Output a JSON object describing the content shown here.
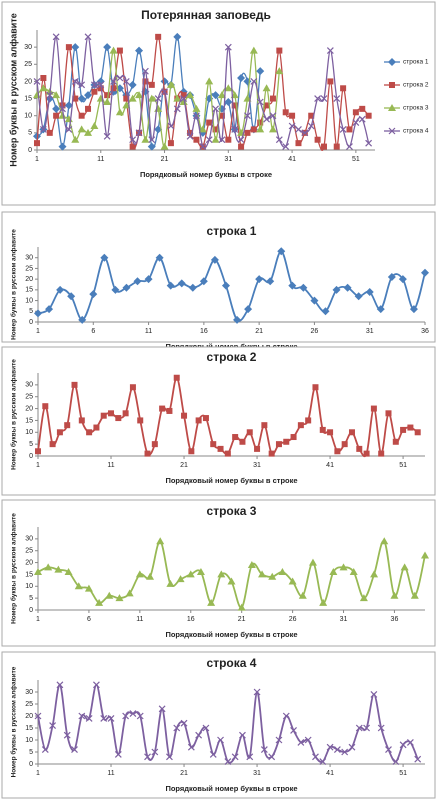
{
  "chart_data": [
    {
      "type": "line",
      "title": "Потерянная заповедь",
      "x_label": "Порядковый номер буквы в строке",
      "y_label": "Номер буквы в русском алфавите",
      "legend": "right",
      "grid": false,
      "xlim": [
        1,
        54
      ],
      "ylim": [
        0,
        35
      ],
      "xticks": [
        1,
        11,
        21,
        31,
        41,
        51
      ],
      "yticks": [
        0,
        5,
        10,
        15,
        20,
        25,
        30
      ],
      "series": [
        {
          "name": "строка 1",
          "color": "#4a7ebb",
          "marker": "diamond",
          "x": [
            1,
            2,
            3,
            4,
            5,
            6,
            7,
            8,
            9,
            10,
            11,
            12,
            13,
            14,
            15,
            16,
            17,
            18,
            19,
            20,
            21,
            22,
            23,
            24,
            25,
            26,
            27,
            28,
            29,
            30,
            31,
            32,
            33,
            34,
            35,
            36
          ],
          "values": [
            4,
            6,
            15,
            12,
            1,
            13,
            30,
            15,
            16,
            19,
            20,
            30,
            17,
            18,
            16,
            19,
            29,
            17,
            1,
            6,
            20,
            19,
            33,
            17,
            16,
            10,
            5,
            15,
            16,
            12,
            14,
            6,
            21,
            20,
            6,
            23
          ]
        },
        {
          "name": "строка 2",
          "color": "#be4b48",
          "marker": "square",
          "x": [
            1,
            2,
            3,
            4,
            5,
            6,
            7,
            8,
            9,
            10,
            11,
            12,
            13,
            14,
            15,
            16,
            17,
            18,
            19,
            20,
            21,
            22,
            23,
            24,
            25,
            26,
            27,
            28,
            29,
            30,
            31,
            32,
            33,
            34,
            35,
            36,
            37,
            38,
            39,
            40,
            41,
            42,
            43,
            44,
            45,
            46,
            47,
            48,
            49,
            50,
            51,
            52,
            53
          ],
          "values": [
            2,
            21,
            5,
            10,
            13,
            30,
            15,
            10,
            12,
            17,
            18,
            16,
            18,
            29,
            15,
            1,
            5,
            20,
            19,
            33,
            17,
            2,
            15,
            16,
            5,
            3,
            1,
            8,
            6,
            10,
            3,
            13,
            1,
            5,
            6,
            8,
            13,
            15,
            29,
            11,
            10,
            2,
            5,
            10,
            3,
            1,
            20,
            1,
            18,
            6,
            11,
            12,
            10
          ]
        },
        {
          "name": "строка 3",
          "color": "#98b954",
          "marker": "triangle",
          "x": [
            1,
            2,
            3,
            4,
            5,
            6,
            7,
            8,
            9,
            10,
            11,
            12,
            13,
            14,
            15,
            16,
            17,
            18,
            19,
            20,
            21,
            22,
            23,
            24,
            25,
            26,
            27,
            28,
            29,
            30,
            31,
            32,
            33,
            34,
            35,
            36,
            37,
            38,
            39
          ],
          "values": [
            16,
            18,
            17,
            16,
            10,
            9,
            3,
            6,
            5,
            7,
            15,
            14,
            29,
            11,
            13,
            15,
            16,
            3,
            15,
            12,
            1,
            19,
            15,
            14,
            16,
            12,
            6,
            20,
            3,
            16,
            18,
            16,
            5,
            15,
            29,
            6,
            18,
            6,
            23
          ]
        },
        {
          "name": "строка 4",
          "color": "#7d60a0",
          "marker": "x",
          "x": [
            1,
            2,
            3,
            4,
            5,
            6,
            7,
            8,
            9,
            10,
            11,
            12,
            13,
            14,
            15,
            16,
            17,
            18,
            19,
            20,
            21,
            22,
            23,
            24,
            25,
            26,
            27,
            28,
            29,
            30,
            31,
            32,
            33,
            34,
            35,
            36,
            37,
            38,
            39,
            40,
            41,
            42,
            43,
            44,
            45,
            46,
            47,
            48,
            49,
            50,
            51,
            52,
            53
          ],
          "values": [
            20,
            6,
            16,
            33,
            12,
            6,
            20,
            19,
            33,
            19,
            19,
            4,
            20,
            21,
            20,
            3,
            5,
            23,
            3,
            15,
            17,
            7,
            12,
            15,
            4,
            10,
            1,
            3,
            12,
            3,
            30,
            6,
            3,
            10,
            20,
            14,
            9,
            10,
            3,
            1,
            7,
            6,
            5,
            7,
            15,
            15,
            29,
            15,
            6,
            1,
            8,
            9,
            2
          ]
        }
      ]
    },
    {
      "type": "line",
      "title": "строка 1",
      "x_label": "Порядковый номер буквы в строке",
      "y_label": "Номер буквы в русском алфавите",
      "grid": false,
      "xlim": [
        1,
        36
      ],
      "ylim": [
        0,
        35
      ],
      "xticks": [
        1,
        6,
        11,
        16,
        21,
        26,
        31,
        36
      ],
      "yticks": [
        0,
        5,
        10,
        15,
        20,
        25,
        30
      ],
      "series": [
        {
          "color": "#4a7ebb",
          "marker": "diamond",
          "x": [
            1,
            2,
            3,
            4,
            5,
            6,
            7,
            8,
            9,
            10,
            11,
            12,
            13,
            14,
            15,
            16,
            17,
            18,
            19,
            20,
            21,
            22,
            23,
            24,
            25,
            26,
            27,
            28,
            29,
            30,
            31,
            32,
            33,
            34,
            35,
            36
          ],
          "values": [
            4,
            6,
            15,
            12,
            1,
            13,
            30,
            15,
            16,
            19,
            20,
            30,
            17,
            18,
            16,
            19,
            29,
            17,
            1,
            6,
            20,
            19,
            33,
            17,
            16,
            10,
            5,
            15,
            16,
            12,
            14,
            6,
            21,
            20,
            6,
            23
          ]
        }
      ]
    },
    {
      "type": "line",
      "title": "строка 2",
      "x_label": "Порядковый номер буквы в строке",
      "y_label": "Номер буквы в русском алфавите",
      "grid": false,
      "xlim": [
        1,
        54
      ],
      "ylim": [
        0,
        35
      ],
      "xticks": [
        1,
        11,
        21,
        31,
        41,
        51
      ],
      "yticks": [
        0,
        5,
        10,
        15,
        20,
        25,
        30
      ],
      "series": [
        {
          "color": "#be4b48",
          "marker": "square",
          "x": [
            1,
            2,
            3,
            4,
            5,
            6,
            7,
            8,
            9,
            10,
            11,
            12,
            13,
            14,
            15,
            16,
            17,
            18,
            19,
            20,
            21,
            22,
            23,
            24,
            25,
            26,
            27,
            28,
            29,
            30,
            31,
            32,
            33,
            34,
            35,
            36,
            37,
            38,
            39,
            40,
            41,
            42,
            43,
            44,
            45,
            46,
            47,
            48,
            49,
            50,
            51,
            52,
            53
          ],
          "values": [
            2,
            21,
            5,
            10,
            13,
            30,
            15,
            10,
            12,
            17,
            18,
            16,
            18,
            29,
            15,
            1,
            5,
            20,
            19,
            33,
            17,
            2,
            15,
            16,
            5,
            3,
            1,
            8,
            6,
            10,
            3,
            13,
            1,
            5,
            6,
            8,
            13,
            15,
            29,
            11,
            10,
            2,
            5,
            10,
            3,
            1,
            20,
            1,
            18,
            6,
            11,
            12,
            10
          ]
        }
      ]
    },
    {
      "type": "line",
      "title": "строка 3",
      "x_label": "Порядковый номер буквы в строке",
      "y_label": "Номер буквы в русском алфавите",
      "grid": false,
      "xlim": [
        1,
        39
      ],
      "ylim": [
        0,
        35
      ],
      "xticks": [
        1,
        6,
        11,
        16,
        21,
        26,
        31,
        36
      ],
      "yticks": [
        0,
        5,
        10,
        15,
        20,
        25,
        30
      ],
      "series": [
        {
          "color": "#98b954",
          "marker": "triangle",
          "x": [
            1,
            2,
            3,
            4,
            5,
            6,
            7,
            8,
            9,
            10,
            11,
            12,
            13,
            14,
            15,
            16,
            17,
            18,
            19,
            20,
            21,
            22,
            23,
            24,
            25,
            26,
            27,
            28,
            29,
            30,
            31,
            32,
            33,
            34,
            35,
            36,
            37,
            38,
            39
          ],
          "values": [
            16,
            18,
            17,
            16,
            10,
            9,
            3,
            6,
            5,
            7,
            15,
            14,
            29,
            11,
            13,
            15,
            16,
            3,
            15,
            12,
            1,
            19,
            15,
            14,
            16,
            12,
            6,
            20,
            3,
            16,
            18,
            16,
            5,
            15,
            29,
            6,
            18,
            6,
            23
          ]
        }
      ]
    },
    {
      "type": "line",
      "title": "строка 4",
      "x_label": "Порядковый номер буквы в строке",
      "y_label": "Номер буквы в русском алфавите",
      "grid": false,
      "xlim": [
        1,
        54
      ],
      "ylim": [
        0,
        35
      ],
      "xticks": [
        1,
        11,
        21,
        31,
        41,
        51
      ],
      "yticks": [
        0,
        5,
        10,
        15,
        20,
        25,
        30
      ],
      "series": [
        {
          "color": "#7d60a0",
          "marker": "x",
          "x": [
            1,
            2,
            3,
            4,
            5,
            6,
            7,
            8,
            9,
            10,
            11,
            12,
            13,
            14,
            15,
            16,
            17,
            18,
            19,
            20,
            21,
            22,
            23,
            24,
            25,
            26,
            27,
            28,
            29,
            30,
            31,
            32,
            33,
            34,
            35,
            36,
            37,
            38,
            39,
            40,
            41,
            42,
            43,
            44,
            45,
            46,
            47,
            48,
            49,
            50,
            51,
            52,
            53
          ],
          "values": [
            20,
            6,
            16,
            33,
            12,
            6,
            20,
            19,
            33,
            19,
            19,
            4,
            20,
            21,
            20,
            3,
            5,
            23,
            3,
            15,
            17,
            7,
            12,
            15,
            4,
            10,
            1,
            3,
            12,
            3,
            30,
            6,
            3,
            10,
            20,
            14,
            9,
            10,
            3,
            1,
            7,
            6,
            5,
            7,
            15,
            15,
            29,
            15,
            6,
            1,
            8,
            9,
            2
          ]
        }
      ]
    }
  ]
}
